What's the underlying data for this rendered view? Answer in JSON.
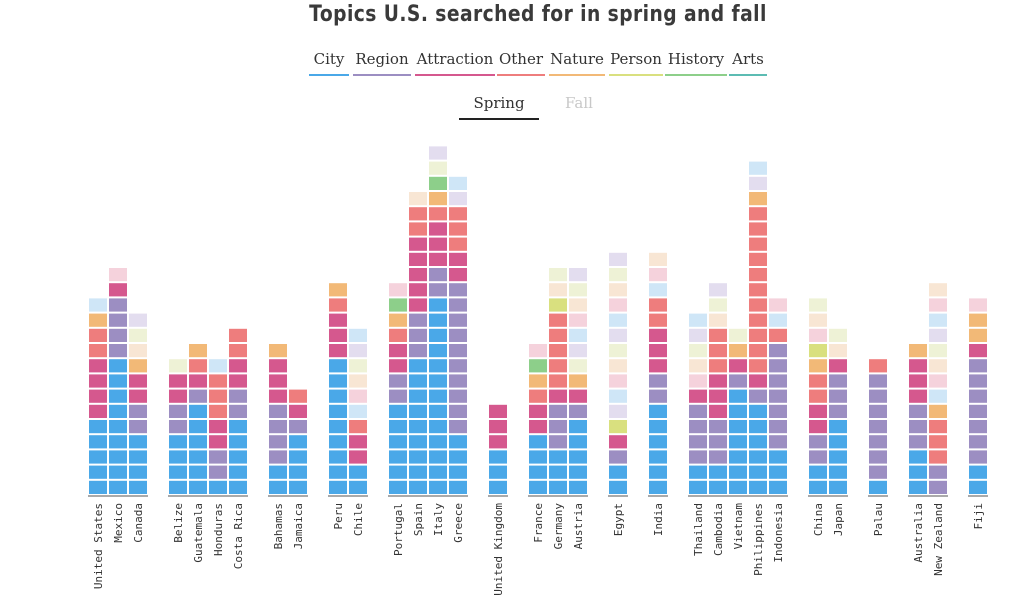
{
  "title": "Topics U.S. searched for in spring and fall",
  "legend": [
    {
      "label": "City",
      "color": "#4aa8e8"
    },
    {
      "label": "Region",
      "color": "#9c8ec2"
    },
    {
      "label": "Attraction",
      "color": "#d5588e"
    },
    {
      "label": "Other",
      "color": "#ee7d7d"
    },
    {
      "label": "Nature",
      "color": "#f2b977"
    },
    {
      "label": "Person",
      "color": "#d9e07f"
    },
    {
      "label": "History",
      "color": "#8dcf8a"
    },
    {
      "label": "Arts",
      "color": "#5cbcb3"
    }
  ],
  "seasons": {
    "spring": "Spring",
    "fall": "Fall",
    "active": "spring"
  },
  "chart_data": {
    "type": "bar",
    "stacked": true,
    "y_unit": "stacked segments (search topics)",
    "categories": [
      "United States",
      "Mexico",
      "Canada",
      "Belize",
      "Guatemala",
      "Honduras",
      "Costa Rica",
      "Bahamas",
      "Jamaica",
      "Peru",
      "Chile",
      "Portugal",
      "Spain",
      "Italy",
      "Greece",
      "United Kingdom",
      "France",
      "Germany",
      "Austria",
      "Egypt",
      "India",
      "Thailand",
      "Cambodia",
      "Vietnam",
      "Philippines",
      "Indonesia",
      "China",
      "Japan",
      "Palau",
      "Australia",
      "New Zealand",
      "Fiji"
    ],
    "groups": [
      [
        0,
        1,
        2
      ],
      [
        3,
        4,
        5,
        6
      ],
      [
        7,
        8
      ],
      [
        9,
        10
      ],
      [
        11,
        12,
        13,
        14
      ],
      [
        15
      ],
      [
        16,
        17,
        18
      ],
      [
        19
      ],
      [
        20
      ],
      [
        21,
        22,
        23,
        24,
        25
      ],
      [
        26,
        27
      ],
      [
        28
      ],
      [
        29,
        30
      ],
      [
        31
      ]
    ],
    "bars": [
      [
        [
          "City",
          5
        ],
        [
          "Region",
          0
        ],
        [
          "Attraction",
          4
        ],
        [
          "Other",
          2
        ],
        [
          "Nature",
          1
        ],
        [
          "Person",
          0
        ],
        [
          "History",
          0
        ],
        [
          "Arts",
          0
        ],
        [
          "light",
          1
        ]
      ],
      [
        [
          "City",
          9
        ],
        [
          "Region",
          4
        ],
        [
          "Attraction",
          1
        ],
        [
          "Other",
          0
        ],
        [
          "Nature",
          0
        ],
        [
          "Person",
          0
        ],
        [
          "History",
          0
        ],
        [
          "Arts",
          0
        ],
        [
          "light",
          1
        ]
      ],
      [
        [
          "City",
          4
        ],
        [
          "Region",
          2
        ],
        [
          "Attraction",
          2
        ],
        [
          "Other",
          0
        ],
        [
          "Nature",
          1
        ],
        [
          "Person",
          0
        ],
        [
          "History",
          0
        ],
        [
          "Arts",
          0
        ],
        [
          "light",
          3
        ]
      ],
      [
        [
          "City",
          4
        ],
        [
          "Region",
          2
        ],
        [
          "Attraction",
          2
        ],
        [
          "Other",
          0
        ],
        [
          "Nature",
          0
        ],
        [
          "Person",
          0
        ],
        [
          "History",
          0
        ],
        [
          "Arts",
          0
        ],
        [
          "light",
          1
        ]
      ],
      [
        [
          "City",
          6
        ],
        [
          "Region",
          1
        ],
        [
          "Attraction",
          1
        ],
        [
          "Other",
          1
        ],
        [
          "Nature",
          1
        ],
        [
          "Person",
          0
        ],
        [
          "History",
          0
        ],
        [
          "Arts",
          0
        ],
        [
          "light",
          0
        ]
      ],
      [
        [
          "City",
          1
        ],
        [
          "Region",
          2
        ],
        [
          "Attraction",
          2
        ],
        [
          "Other",
          3
        ],
        [
          "Nature",
          0
        ],
        [
          "Person",
          0
        ],
        [
          "History",
          0
        ],
        [
          "Arts",
          0
        ],
        [
          "light",
          1
        ]
      ],
      [
        [
          "City",
          5
        ],
        [
          "Region",
          2
        ],
        [
          "Attraction",
          2
        ],
        [
          "Other",
          2
        ],
        [
          "Nature",
          0
        ],
        [
          "Person",
          0
        ],
        [
          "History",
          0
        ],
        [
          "Arts",
          0
        ],
        [
          "light",
          0
        ]
      ],
      [
        [
          "City",
          2
        ],
        [
          "Region",
          4
        ],
        [
          "Attraction",
          3
        ],
        [
          "Other",
          0
        ],
        [
          "Nature",
          1
        ],
        [
          "Person",
          0
        ],
        [
          "History",
          0
        ],
        [
          "Arts",
          0
        ],
        [
          "light",
          0
        ]
      ],
      [
        [
          "City",
          4
        ],
        [
          "Region",
          1
        ],
        [
          "Attraction",
          1
        ],
        [
          "Other",
          1
        ],
        [
          "Nature",
          0
        ],
        [
          "Person",
          0
        ],
        [
          "History",
          0
        ],
        [
          "Arts",
          0
        ],
        [
          "light",
          0
        ]
      ],
      [
        [
          "City",
          9
        ],
        [
          "Region",
          0
        ],
        [
          "Attraction",
          3
        ],
        [
          "Other",
          1
        ],
        [
          "Nature",
          1
        ],
        [
          "Person",
          0
        ],
        [
          "History",
          0
        ],
        [
          "Arts",
          0
        ],
        [
          "light",
          0
        ]
      ],
      [
        [
          "City",
          2
        ],
        [
          "Region",
          0
        ],
        [
          "Attraction",
          2
        ],
        [
          "Other",
          1
        ],
        [
          "Nature",
          0
        ],
        [
          "Person",
          0
        ],
        [
          "History",
          0
        ],
        [
          "Arts",
          0
        ],
        [
          "light",
          6
        ]
      ],
      [
        [
          "City",
          6
        ],
        [
          "Region",
          2
        ],
        [
          "Attraction",
          2
        ],
        [
          "Other",
          1
        ],
        [
          "Nature",
          1
        ],
        [
          "Person",
          0
        ],
        [
          "History",
          1
        ],
        [
          "Arts",
          0
        ],
        [
          "light",
          1
        ]
      ],
      [
        [
          "City",
          9
        ],
        [
          "Region",
          3
        ],
        [
          "Attraction",
          5
        ],
        [
          "Other",
          2
        ],
        [
          "Nature",
          0
        ],
        [
          "Person",
          0
        ],
        [
          "History",
          0
        ],
        [
          "Arts",
          0
        ],
        [
          "light",
          1
        ]
      ],
      [
        [
          "City",
          13
        ],
        [
          "Region",
          2
        ],
        [
          "Attraction",
          3
        ],
        [
          "Other",
          1
        ],
        [
          "Nature",
          1
        ],
        [
          "Person",
          0
        ],
        [
          "History",
          1
        ],
        [
          "Arts",
          0
        ],
        [
          "light",
          2
        ]
      ],
      [
        [
          "City",
          4
        ],
        [
          "Region",
          10
        ],
        [
          "Attraction",
          2
        ],
        [
          "Other",
          3
        ],
        [
          "Nature",
          0
        ],
        [
          "Person",
          0
        ],
        [
          "History",
          0
        ],
        [
          "Arts",
          0
        ],
        [
          "light",
          2
        ]
      ],
      [
        [
          "City",
          3
        ],
        [
          "Region",
          0
        ],
        [
          "Attraction",
          3
        ],
        [
          "Other",
          0
        ],
        [
          "Nature",
          0
        ],
        [
          "Person",
          0
        ],
        [
          "History",
          0
        ],
        [
          "Arts",
          0
        ],
        [
          "light",
          0
        ]
      ],
      [
        [
          "City",
          4
        ],
        [
          "Region",
          0
        ],
        [
          "Attraction",
          2
        ],
        [
          "Other",
          1
        ],
        [
          "Nature",
          1
        ],
        [
          "Person",
          0
        ],
        [
          "History",
          1
        ],
        [
          "Arts",
          0
        ],
        [
          "light",
          1
        ]
      ],
      [
        [
          "City",
          3
        ],
        [
          "Region",
          3
        ],
        [
          "Attraction",
          1
        ],
        [
          "Other",
          5
        ],
        [
          "Nature",
          0
        ],
        [
          "Person",
          1
        ],
        [
          "History",
          0
        ],
        [
          "Arts",
          0
        ],
        [
          "light",
          2
        ]
      ],
      [
        [
          "City",
          5
        ],
        [
          "Region",
          1
        ],
        [
          "Attraction",
          1
        ],
        [
          "Other",
          0
        ],
        [
          "Nature",
          1
        ],
        [
          "Person",
          0
        ],
        [
          "History",
          0
        ],
        [
          "Arts",
          0
        ],
        [
          "light",
          7
        ]
      ],
      [
        [
          "City",
          2
        ],
        [
          "Region",
          1
        ],
        [
          "Attraction",
          1
        ],
        [
          "Other",
          0
        ],
        [
          "Nature",
          0
        ],
        [
          "Person",
          1
        ],
        [
          "History",
          0
        ],
        [
          "Arts",
          0
        ],
        [
          "light",
          11
        ]
      ],
      [
        [
          "City",
          6
        ],
        [
          "Region",
          2
        ],
        [
          "Attraction",
          3
        ],
        [
          "Other",
          2
        ],
        [
          "Nature",
          0
        ],
        [
          "Person",
          0
        ],
        [
          "History",
          0
        ],
        [
          "Arts",
          0
        ],
        [
          "light",
          3
        ]
      ],
      [
        [
          "City",
          2
        ],
        [
          "Region",
          4
        ],
        [
          "Attraction",
          1
        ],
        [
          "Other",
          0
        ],
        [
          "Nature",
          0
        ],
        [
          "Person",
          0
        ],
        [
          "History",
          0
        ],
        [
          "Arts",
          0
        ],
        [
          "light",
          5
        ]
      ],
      [
        [
          "City",
          2
        ],
        [
          "Region",
          3
        ],
        [
          "Attraction",
          3
        ],
        [
          "Other",
          3
        ],
        [
          "Nature",
          0
        ],
        [
          "Person",
          0
        ],
        [
          "History",
          0
        ],
        [
          "Arts",
          0
        ],
        [
          "light",
          3
        ]
      ],
      [
        [
          "City",
          7
        ],
        [
          "Region",
          1
        ],
        [
          "Attraction",
          1
        ],
        [
          "Other",
          0
        ],
        [
          "Nature",
          1
        ],
        [
          "Person",
          0
        ],
        [
          "History",
          0
        ],
        [
          "Arts",
          0
        ],
        [
          "light",
          1
        ]
      ],
      [
        [
          "City",
          6
        ],
        [
          "Region",
          1
        ],
        [
          "Attraction",
          1
        ],
        [
          "Other",
          11
        ],
        [
          "Nature",
          1
        ],
        [
          "Person",
          0
        ],
        [
          "History",
          0
        ],
        [
          "Arts",
          0
        ],
        [
          "light",
          2
        ]
      ],
      [
        [
          "City",
          3
        ],
        [
          "Region",
          7
        ],
        [
          "Attraction",
          0
        ],
        [
          "Other",
          1
        ],
        [
          "Nature",
          0
        ],
        [
          "Person",
          0
        ],
        [
          "History",
          0
        ],
        [
          "Arts",
          0
        ],
        [
          "light",
          2
        ]
      ],
      [
        [
          "City",
          2
        ],
        [
          "Region",
          2
        ],
        [
          "Attraction",
          2
        ],
        [
          "Other",
          2
        ],
        [
          "Nature",
          1
        ],
        [
          "Person",
          1
        ],
        [
          "History",
          0
        ],
        [
          "Arts",
          0
        ],
        [
          "light",
          3
        ]
      ],
      [
        [
          "City",
          5
        ],
        [
          "Region",
          3
        ],
        [
          "Attraction",
          1
        ],
        [
          "Other",
          0
        ],
        [
          "Nature",
          0
        ],
        [
          "Person",
          0
        ],
        [
          "History",
          0
        ],
        [
          "Arts",
          0
        ],
        [
          "light",
          2
        ]
      ],
      [
        [
          "City",
          1
        ],
        [
          "Region",
          7
        ],
        [
          "Attraction",
          0
        ],
        [
          "Other",
          1
        ],
        [
          "Nature",
          0
        ],
        [
          "Person",
          0
        ],
        [
          "History",
          0
        ],
        [
          "Arts",
          0
        ],
        [
          "light",
          0
        ]
      ],
      [
        [
          "City",
          3
        ],
        [
          "Region",
          3
        ],
        [
          "Attraction",
          3
        ],
        [
          "Other",
          0
        ],
        [
          "Nature",
          1
        ],
        [
          "Person",
          0
        ],
        [
          "History",
          0
        ],
        [
          "Arts",
          0
        ],
        [
          "light",
          0
        ]
      ],
      [
        [
          "City",
          0
        ],
        [
          "Region",
          2
        ],
        [
          "Attraction",
          0
        ],
        [
          "Other",
          3
        ],
        [
          "Nature",
          1
        ],
        [
          "Person",
          0
        ],
        [
          "History",
          0
        ],
        [
          "Arts",
          0
        ],
        [
          "light",
          8
        ]
      ],
      [
        [
          "City",
          2
        ],
        [
          "Region",
          7
        ],
        [
          "Attraction",
          1
        ],
        [
          "Other",
          0
        ],
        [
          "Nature",
          2
        ],
        [
          "Person",
          0
        ],
        [
          "History",
          0
        ],
        [
          "Arts",
          0
        ],
        [
          "light",
          1
        ]
      ]
    ]
  }
}
